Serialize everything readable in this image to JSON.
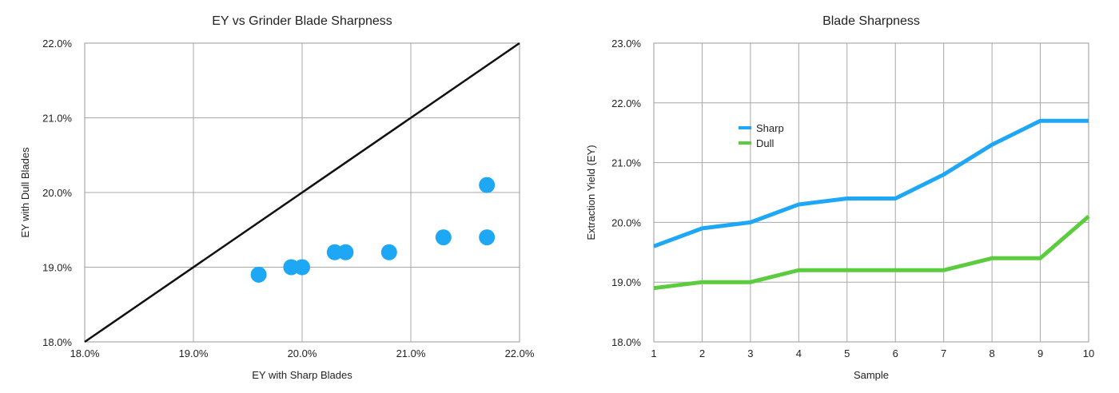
{
  "chart_data": [
    {
      "type": "scatter",
      "title": "EY vs Grinder Blade Sharpness",
      "xlabel": "EY with Sharp Blades",
      "ylabel": "EY with Dull Blades",
      "xlim": [
        18.0,
        22.0
      ],
      "ylim": [
        18.0,
        22.0
      ],
      "xticks": [
        "18.0%",
        "19.0%",
        "20.0%",
        "21.0%",
        "22.0%"
      ],
      "yticks": [
        "18.0%",
        "19.0%",
        "20.0%",
        "21.0%",
        "22.0%"
      ],
      "grid": true,
      "reference_line": [
        [
          18.0,
          18.0
        ],
        [
          22.0,
          22.0
        ]
      ],
      "points": [
        {
          "x": 19.6,
          "y": 18.9
        },
        {
          "x": 19.9,
          "y": 19.0
        },
        {
          "x": 20.0,
          "y": 19.0
        },
        {
          "x": 20.3,
          "y": 19.2
        },
        {
          "x": 20.4,
          "y": 19.2
        },
        {
          "x": 20.8,
          "y": 19.2
        },
        {
          "x": 21.3,
          "y": 19.4
        },
        {
          "x": 21.7,
          "y": 19.4
        },
        {
          "x": 21.7,
          "y": 20.1
        }
      ],
      "colors": {
        "point": "#1ea7f5",
        "line": "#111111"
      }
    },
    {
      "type": "line",
      "title": "Blade Sharpness",
      "xlabel": "Sample",
      "ylabel": "Extraction Yield (EY)",
      "x": [
        1,
        2,
        3,
        4,
        5,
        6,
        7,
        8,
        9,
        10
      ],
      "xticks": [
        "1",
        "2",
        "3",
        "4",
        "5",
        "6",
        "7",
        "8",
        "9",
        "10"
      ],
      "ylim": [
        18.0,
        23.0
      ],
      "yticks": [
        "18.0%",
        "19.0%",
        "20.0%",
        "21.0%",
        "22.0%",
        "23.0%"
      ],
      "grid": true,
      "legend_position": "upper-left",
      "series": [
        {
          "name": "Sharp",
          "color": "#1ea7f5",
          "values": [
            19.6,
            19.9,
            20.0,
            20.3,
            20.4,
            20.4,
            20.8,
            21.3,
            21.7,
            21.7
          ]
        },
        {
          "name": "Dull",
          "color": "#5ccc3f",
          "values": [
            18.9,
            19.0,
            19.0,
            19.2,
            19.2,
            19.2,
            19.2,
            19.4,
            19.4,
            20.1
          ]
        }
      ]
    }
  ]
}
